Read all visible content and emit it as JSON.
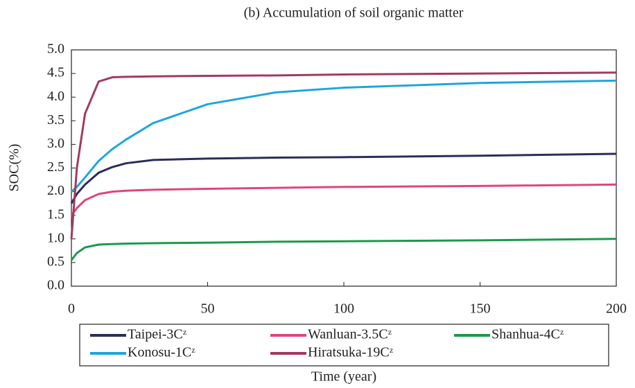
{
  "chart_data": {
    "type": "line",
    "title": "(b) Accumulation of soil organic matter",
    "x_label": "Time (year)",
    "y_label": "SOC(%)",
    "x": [
      0,
      2,
      5,
      10,
      15,
      20,
      30,
      50,
      75,
      100,
      150,
      200
    ],
    "series": [
      {
        "name": "Taipei-3Cᶻ",
        "color": "#2b2d5a",
        "values": [
          1.75,
          1.95,
          2.15,
          2.4,
          2.52,
          2.6,
          2.67,
          2.7,
          2.72,
          2.73,
          2.76,
          2.8
        ]
      },
      {
        "name": "Wanluan-3.5Cᶻ",
        "color": "#e0457b",
        "values": [
          1.5,
          1.65,
          1.82,
          1.95,
          2.0,
          2.02,
          2.04,
          2.06,
          2.08,
          2.1,
          2.12,
          2.15
        ]
      },
      {
        "name": "Shanhua-4Cᶻ",
        "color": "#1a9a4a",
        "values": [
          0.55,
          0.7,
          0.82,
          0.88,
          0.89,
          0.9,
          0.91,
          0.92,
          0.94,
          0.95,
          0.97,
          1.0
        ]
      },
      {
        "name": "Konosu-1Cᶻ",
        "color": "#1ea6dc",
        "values": [
          2.0,
          2.1,
          2.3,
          2.65,
          2.9,
          3.1,
          3.45,
          3.85,
          4.1,
          4.2,
          4.3,
          4.35
        ]
      },
      {
        "name": "Hiratsuka-19Cᶻ",
        "color": "#a23a5e",
        "values": [
          1.0,
          2.5,
          3.65,
          4.33,
          4.42,
          4.43,
          4.44,
          4.45,
          4.46,
          4.48,
          4.5,
          4.52
        ]
      }
    ],
    "xlim": [
      0,
      200
    ],
    "xticks": [
      0,
      50,
      100,
      150,
      200
    ],
    "ylim": [
      0,
      5
    ],
    "yticks": [
      {
        "value": 0,
        "label": "0.0"
      },
      {
        "value": 0.5,
        "label": "0.5"
      },
      {
        "value": 1,
        "label": "1.0"
      },
      {
        "value": 1.5,
        "label": "1.5"
      },
      {
        "value": 2,
        "label": "2.0"
      },
      {
        "value": 2.5,
        "label": "2.5"
      },
      {
        "value": 3,
        "label": "3.0"
      },
      {
        "value": 3.5,
        "label": "3.5"
      },
      {
        "value": 4,
        "label": "4.0"
      },
      {
        "value": 4.5,
        "label": "4.5"
      },
      {
        "value": 5,
        "label": "5.0"
      }
    ],
    "grid": false
  }
}
